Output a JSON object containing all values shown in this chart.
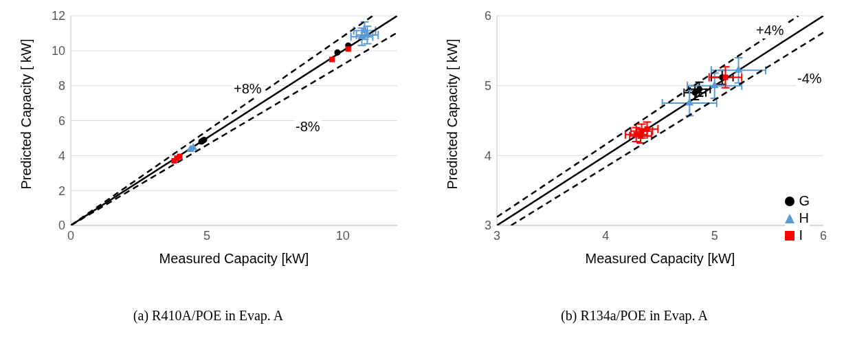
{
  "chart_data": [
    {
      "type": "scatter",
      "title": "(a) R410A/POE in Evap. A",
      "xlabel": "Measured Capacity [kW]",
      "ylabel": "Predicted Capacity [ kW]",
      "xlim": [
        0,
        12
      ],
      "ylim": [
        0,
        12
      ],
      "xticks": [
        0,
        5,
        10
      ],
      "yticks": [
        0,
        2,
        4,
        6,
        8,
        10,
        12
      ],
      "grid": "y",
      "legend": false,
      "annotations": [
        "+8%",
        "-8%"
      ],
      "series": [
        {
          "type": "line",
          "color": "#000000",
          "line_style": "solid",
          "marker": "none",
          "x": [
            0,
            12
          ],
          "values": [
            0,
            12
          ]
        },
        {
          "type": "line",
          "color": "#000000",
          "line_style": "dashed",
          "marker": "none",
          "x": [
            0,
            11.1
          ],
          "values": [
            0,
            12
          ]
        },
        {
          "type": "line",
          "color": "#000000",
          "line_style": "dashed",
          "marker": "none",
          "x": [
            0,
            12
          ],
          "values": [
            0,
            11.04
          ]
        },
        {
          "color": "#000000",
          "marker": "circle",
          "x": [
            4.8,
            4.9,
            4.85,
            9.8,
            10.2
          ],
          "values": [
            4.8,
            4.9,
            4.85,
            9.9,
            10.3
          ]
        },
        {
          "color": "#5b9bd5",
          "marker": "triangle",
          "x": [
            4.4,
            4.5,
            10.8,
            10.9,
            10.7
          ],
          "values": [
            4.35,
            4.45,
            11.15,
            10.9,
            10.8
          ],
          "xerrors": [
            null,
            null,
            0.4,
            0.4,
            0.4
          ],
          "errors": [
            null,
            null,
            0.5,
            0.5,
            0.5
          ]
        },
        {
          "color": "#ff0000",
          "marker": "square",
          "x": [
            3.8,
            4.0,
            3.9,
            9.6,
            10.2
          ],
          "values": [
            3.7,
            3.95,
            3.85,
            9.5,
            10.1
          ]
        }
      ]
    },
    {
      "type": "scatter",
      "title": "(b) R134a/POE in Evap. A",
      "xlabel": "Measured Capacity [kW]",
      "ylabel": "Predicted Capacity [ kW]",
      "xlim": [
        3,
        6
      ],
      "ylim": [
        3,
        6
      ],
      "xticks": [
        3,
        4,
        5,
        6
      ],
      "yticks": [
        3,
        4,
        5,
        6
      ],
      "grid": "y",
      "legend": "bottom right",
      "annotations": [
        "+4%",
        "-4%"
      ],
      "series": [
        {
          "type": "line",
          "color": "#000000",
          "line_style": "solid",
          "marker": "none",
          "x": [
            3,
            6
          ],
          "values": [
            3,
            6
          ]
        },
        {
          "type": "line",
          "color": "#000000",
          "line_style": "dashed",
          "marker": "none",
          "x": [
            3,
            5.77
          ],
          "values": [
            3.12,
            6
          ]
        },
        {
          "type": "line",
          "color": "#000000",
          "line_style": "dashed",
          "marker": "none",
          "x": [
            3.13,
            6
          ],
          "values": [
            3,
            5.76
          ]
        },
        {
          "name": "G",
          "color": "#000000",
          "marker": "circle",
          "x": [
            4.82,
            4.86,
            5.07
          ],
          "values": [
            4.9,
            4.95,
            5.12
          ],
          "xerrors": [
            0.1,
            0.1,
            0.1
          ],
          "errors": [
            0.1,
            0.1,
            0.1
          ]
        },
        {
          "name": "H",
          "color": "#5b9bd5",
          "marker": "triangle",
          "x": [
            4.77,
            5.0,
            5.22
          ],
          "values": [
            4.75,
            5.0,
            5.22
          ],
          "xerrors": [
            0.25,
            0.25,
            0.25
          ],
          "errors": [
            0.18,
            0.18,
            0.18
          ]
        },
        {
          "name": "I",
          "color": "#ff0000",
          "marker": "square",
          "x": [
            4.28,
            4.33,
            4.38,
            4.32,
            5.1
          ],
          "values": [
            4.3,
            4.35,
            4.38,
            4.28,
            5.12
          ],
          "xerrors": [
            0.1,
            0.1,
            0.1,
            0.1,
            0.15
          ],
          "errors": [
            0.1,
            0.1,
            0.1,
            0.1,
            0.15
          ]
        }
      ]
    }
  ]
}
